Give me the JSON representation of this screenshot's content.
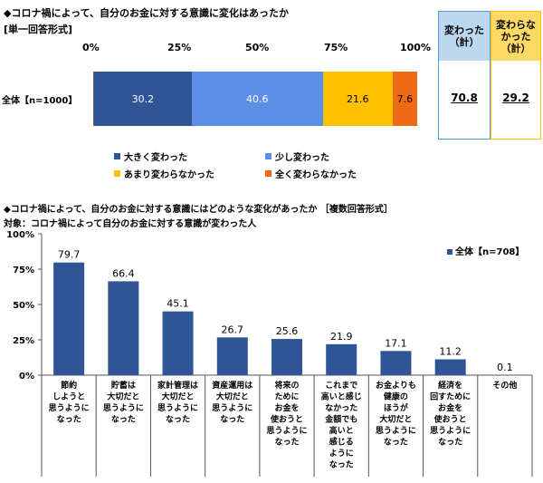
{
  "section1": {
    "title": "◆コロナ禍によって、自分のお金に対する意識に変化はあったか",
    "subtitle": "[単一回答形式]",
    "row_label": "全体【n=1000】",
    "ticks": [
      "0%",
      "25%",
      "50%",
      "75%",
      "100%"
    ],
    "segments": [
      {
        "label": "30.2",
        "color": "#2f5597"
      },
      {
        "label": "40.6",
        "color": "#5b8fe6"
      },
      {
        "label": "21.6",
        "color": "#ffc000"
      },
      {
        "label": "7.6",
        "color": "#ee6a14"
      }
    ],
    "legend": [
      {
        "label": "大きく変わった",
        "color": "#2f5597"
      },
      {
        "label": "少し変わった",
        "color": "#5b8fe6"
      },
      {
        "label": "あまり変わらなかった",
        "color": "#ffc000"
      },
      {
        "label": "全く変わらなかった",
        "color": "#ee6a14"
      }
    ],
    "box_changed": {
      "header": "変わった\n（計）",
      "value": "70.8",
      "bg": "#bdd7ee",
      "border": "#5b9bd5"
    },
    "box_unchanged": {
      "header": "変わらな\nかった\n（計）",
      "value": "29.2",
      "bg": "#ffd966",
      "border": "#ffc000"
    }
  },
  "section2": {
    "title": "◆コロナ禍によって、自分のお金に対する意識にはどのような変化があったか ［複数回答形式］",
    "subtitle": "対象：コロナ禍によって自分のお金に対する意識が変わった人",
    "legend": "全体【n=708】",
    "y_ticks": [
      "100%",
      "75%",
      "50%",
      "25%",
      "0%"
    ]
  },
  "chart_data": [
    {
      "type": "bar",
      "title": "◆コロナ禍によって、自分のお金に対する意識に変化はあったか",
      "subtitle": "[単一回答形式]",
      "categories": [
        "全体【n=1000】"
      ],
      "series": [
        {
          "name": "大きく変わった",
          "values": [
            30.2
          ]
        },
        {
          "name": "少し変わった",
          "values": [
            40.6
          ]
        },
        {
          "name": "あまり変わらなかった",
          "values": [
            21.6
          ]
        },
        {
          "name": "全く変わらなかった",
          "values": [
            7.6
          ]
        }
      ],
      "stacked": true,
      "orientation": "horizontal",
      "xlim": [
        0,
        100
      ],
      "legend_position": "bottom",
      "totals": {
        "変わった（計）": 70.8,
        "変わらなかった（計）": 29.2
      }
    },
    {
      "type": "bar",
      "title": "◆コロナ禍によって、自分のお金に対する意識にはどのような変化があったか ［複数回答形式］",
      "subtitle": "対象：コロナ禍によって自分のお金に対する意識が変わった人",
      "categories": [
        "節約しようと思うようになった",
        "貯蓄は大切だと思うようになった",
        "家計管理は大切だと思うようになった",
        "資産運用は大切だと思うようになった",
        "将来のためにお金を使おうと思うようになった",
        "これまで高いと感じなかった金額でも高いと感じるようになった",
        "お金よりも健康のほうが大切だと思うようになった",
        "経済を回すためにお金を使おうと思うようになった",
        "その他"
      ],
      "category_lines": [
        [
          "節約",
          "しようと",
          "思うように",
          "なった"
        ],
        [
          "貯蓄は",
          "大切だと",
          "思うように",
          "なった"
        ],
        [
          "家計管理は",
          "大切だと",
          "思うように",
          "なった"
        ],
        [
          "資産運用は",
          "大切だと",
          "思うように",
          "なった"
        ],
        [
          "将来の",
          "ために",
          "お金を",
          "使おうと",
          "思うように",
          "なった"
        ],
        [
          "これまで",
          "高いと感じ",
          "なかった",
          "金額でも",
          "高いと",
          "感じる",
          "ように",
          "なった"
        ],
        [
          "お金よりも",
          "健康の",
          "ほうが",
          "大切だと",
          "思うように",
          "なった"
        ],
        [
          "経済を",
          "回すために",
          "お金を",
          "使おうと",
          "思うように",
          "なった"
        ],
        [
          "その他"
        ]
      ],
      "series": [
        {
          "name": "全体【n=708】",
          "values": [
            79.7,
            66.4,
            45.1,
            26.7,
            25.6,
            21.9,
            17.1,
            11.2,
            0.1
          ],
          "color": "#2f5597"
        }
      ],
      "ylim": [
        0,
        100
      ],
      "y_ticks": [
        "0%",
        "25%",
        "50%",
        "75%",
        "100%"
      ],
      "grid": false,
      "legend_position": "top-right"
    }
  ]
}
